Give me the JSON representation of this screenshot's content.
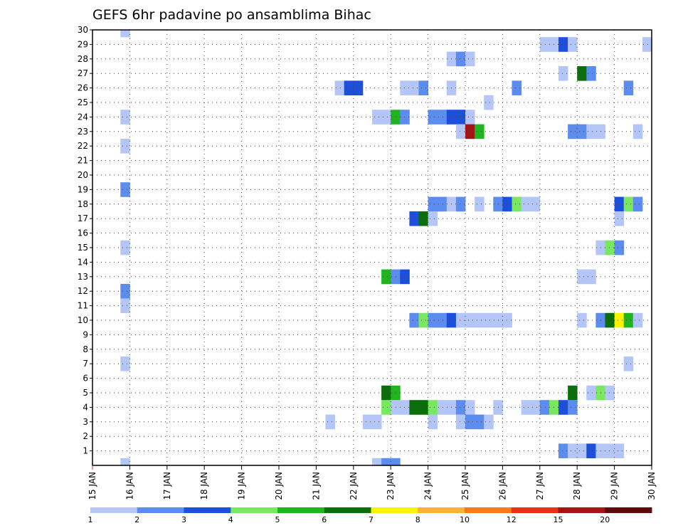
{
  "chart_data": {
    "type": "heatmap",
    "title": "GEFS 6hr padavine po ansamblima Bihac",
    "x_tick_labels": [
      "15 JAN",
      "16 JAN",
      "17 JAN",
      "18 JAN",
      "19 JAN",
      "20 JAN",
      "21 JAN",
      "22 JAN",
      "23 JAN",
      "24 JAN",
      "25 JAN",
      "26 JAN",
      "27 JAN",
      "28 JAN",
      "29 JAN",
      "30 JAN"
    ],
    "y_tick_labels": [
      "1",
      "2",
      "3",
      "4",
      "5",
      "6",
      "7",
      "8",
      "9",
      "10",
      "11",
      "12",
      "13",
      "14",
      "15",
      "16",
      "17",
      "18",
      "19",
      "20",
      "21",
      "22",
      "23",
      "24",
      "25",
      "26",
      "27",
      "28",
      "29",
      "30"
    ],
    "x_range_days": [
      15,
      30
    ],
    "y_range": [
      0,
      30
    ],
    "grid": true,
    "legend": {
      "placement": "bottom",
      "labels": [
        "1",
        "2",
        "3",
        "4",
        "5",
        "6",
        "7",
        "8",
        "10",
        "12",
        "15",
        "20"
      ],
      "colors": [
        "#b3c6f7",
        "#5b8cee",
        "#1c4fdc",
        "#79e860",
        "#1fb51f",
        "#0a6e0a",
        "#fbf300",
        "#f9b23c",
        "#f47a1a",
        "#e63216",
        "#a41414",
        "#5e0a0a"
      ]
    },
    "cells": [
      {
        "member": 30,
        "day": 15.75,
        "level": 1
      },
      {
        "member": 29,
        "day": 27.0,
        "level": 1
      },
      {
        "member": 29,
        "day": 27.25,
        "level": 1
      },
      {
        "member": 29,
        "day": 27.5,
        "level": 3
      },
      {
        "member": 29,
        "day": 27.75,
        "level": 1
      },
      {
        "member": 29,
        "day": 29.75,
        "level": 1
      },
      {
        "member": 28,
        "day": 24.5,
        "level": 1
      },
      {
        "member": 28,
        "day": 24.75,
        "level": 2
      },
      {
        "member": 28,
        "day": 25.0,
        "level": 1
      },
      {
        "member": 27,
        "day": 27.5,
        "level": 1
      },
      {
        "member": 27,
        "day": 28.0,
        "level": 6
      },
      {
        "member": 27,
        "day": 28.25,
        "level": 2
      },
      {
        "member": 26,
        "day": 21.5,
        "level": 1
      },
      {
        "member": 26,
        "day": 21.75,
        "level": 3
      },
      {
        "member": 26,
        "day": 22.0,
        "level": 3
      },
      {
        "member": 26,
        "day": 23.25,
        "level": 1
      },
      {
        "member": 26,
        "day": 23.5,
        "level": 1
      },
      {
        "member": 26,
        "day": 23.75,
        "level": 2
      },
      {
        "member": 26,
        "day": 24.5,
        "level": 1
      },
      {
        "member": 26,
        "day": 26.25,
        "level": 2
      },
      {
        "member": 26,
        "day": 29.25,
        "level": 2
      },
      {
        "member": 25,
        "day": 25.5,
        "level": 1
      },
      {
        "member": 24,
        "day": 15.75,
        "level": 1
      },
      {
        "member": 24,
        "day": 22.5,
        "level": 1
      },
      {
        "member": 24,
        "day": 22.75,
        "level": 1
      },
      {
        "member": 24,
        "day": 23.0,
        "level": 5
      },
      {
        "member": 24,
        "day": 23.25,
        "level": 2
      },
      {
        "member": 24,
        "day": 24.0,
        "level": 2
      },
      {
        "member": 24,
        "day": 24.25,
        "level": 2
      },
      {
        "member": 24,
        "day": 24.5,
        "level": 3
      },
      {
        "member": 24,
        "day": 24.75,
        "level": 3
      },
      {
        "member": 24,
        "day": 25.0,
        "level": 1
      },
      {
        "member": 23,
        "day": 24.75,
        "level": 1
      },
      {
        "member": 23,
        "day": 25.0,
        "level": 11
      },
      {
        "member": 23,
        "day": 25.25,
        "level": 5
      },
      {
        "member": 23,
        "day": 27.75,
        "level": 2
      },
      {
        "member": 23,
        "day": 28.0,
        "level": 2
      },
      {
        "member": 23,
        "day": 28.25,
        "level": 1
      },
      {
        "member": 23,
        "day": 28.5,
        "level": 1
      },
      {
        "member": 23,
        "day": 29.5,
        "level": 1
      },
      {
        "member": 22,
        "day": 15.75,
        "level": 1
      },
      {
        "member": 19,
        "day": 15.75,
        "level": 2
      },
      {
        "member": 18,
        "day": 24.0,
        "level": 2
      },
      {
        "member": 18,
        "day": 24.25,
        "level": 2
      },
      {
        "member": 18,
        "day": 24.5,
        "level": 1
      },
      {
        "member": 18,
        "day": 24.75,
        "level": 2
      },
      {
        "member": 18,
        "day": 25.25,
        "level": 1
      },
      {
        "member": 18,
        "day": 25.75,
        "level": 2
      },
      {
        "member": 18,
        "day": 26.0,
        "level": 3
      },
      {
        "member": 18,
        "day": 26.25,
        "level": 4
      },
      {
        "member": 18,
        "day": 26.5,
        "level": 1
      },
      {
        "member": 18,
        "day": 26.75,
        "level": 1
      },
      {
        "member": 18,
        "day": 29.0,
        "level": 3
      },
      {
        "member": 18,
        "day": 29.25,
        "level": 4
      },
      {
        "member": 18,
        "day": 29.5,
        "level": 2
      },
      {
        "member": 17,
        "day": 23.5,
        "level": 3
      },
      {
        "member": 17,
        "day": 23.75,
        "level": 6
      },
      {
        "member": 17,
        "day": 24.0,
        "level": 1
      },
      {
        "member": 17,
        "day": 29.0,
        "level": 1
      },
      {
        "member": 15,
        "day": 15.75,
        "level": 1
      },
      {
        "member": 15,
        "day": 28.5,
        "level": 1
      },
      {
        "member": 15,
        "day": 28.75,
        "level": 4
      },
      {
        "member": 15,
        "day": 29.0,
        "level": 2
      },
      {
        "member": 13,
        "day": 22.75,
        "level": 5
      },
      {
        "member": 13,
        "day": 23.0,
        "level": 2
      },
      {
        "member": 13,
        "day": 23.25,
        "level": 3
      },
      {
        "member": 13,
        "day": 28.0,
        "level": 1
      },
      {
        "member": 13,
        "day": 28.25,
        "level": 1
      },
      {
        "member": 12,
        "day": 15.75,
        "level": 2
      },
      {
        "member": 11,
        "day": 15.75,
        "level": 1
      },
      {
        "member": 10,
        "day": 23.5,
        "level": 2
      },
      {
        "member": 10,
        "day": 23.75,
        "level": 4
      },
      {
        "member": 10,
        "day": 24.0,
        "level": 2
      },
      {
        "member": 10,
        "day": 24.25,
        "level": 2
      },
      {
        "member": 10,
        "day": 24.5,
        "level": 3
      },
      {
        "member": 10,
        "day": 24.75,
        "level": 1
      },
      {
        "member": 10,
        "day": 25.0,
        "level": 1
      },
      {
        "member": 10,
        "day": 25.25,
        "level": 1
      },
      {
        "member": 10,
        "day": 25.5,
        "level": 1
      },
      {
        "member": 10,
        "day": 25.75,
        "level": 1
      },
      {
        "member": 10,
        "day": 26.0,
        "level": 1
      },
      {
        "member": 10,
        "day": 28.0,
        "level": 1
      },
      {
        "member": 10,
        "day": 28.5,
        "level": 2
      },
      {
        "member": 10,
        "day": 28.75,
        "level": 6
      },
      {
        "member": 10,
        "day": 29.0,
        "level": 7
      },
      {
        "member": 10,
        "day": 29.25,
        "level": 5
      },
      {
        "member": 10,
        "day": 29.5,
        "level": 1
      },
      {
        "member": 7,
        "day": 15.75,
        "level": 1
      },
      {
        "member": 7,
        "day": 29.25,
        "level": 1
      },
      {
        "member": 5,
        "day": 22.75,
        "level": 6
      },
      {
        "member": 5,
        "day": 23.0,
        "level": 5
      },
      {
        "member": 5,
        "day": 27.75,
        "level": 6
      },
      {
        "member": 5,
        "day": 28.25,
        "level": 1
      },
      {
        "member": 5,
        "day": 28.5,
        "level": 4
      },
      {
        "member": 5,
        "day": 28.75,
        "level": 1
      },
      {
        "member": 4,
        "day": 22.75,
        "level": 4
      },
      {
        "member": 4,
        "day": 23.0,
        "level": 1
      },
      {
        "member": 4,
        "day": 23.25,
        "level": 1
      },
      {
        "member": 4,
        "day": 23.5,
        "level": 6
      },
      {
        "member": 4,
        "day": 23.75,
        "level": 6
      },
      {
        "member": 4,
        "day": 24.0,
        "level": 4
      },
      {
        "member": 4,
        "day": 24.25,
        "level": 1
      },
      {
        "member": 4,
        "day": 24.5,
        "level": 1
      },
      {
        "member": 4,
        "day": 24.75,
        "level": 2
      },
      {
        "member": 4,
        "day": 25.0,
        "level": 1
      },
      {
        "member": 4,
        "day": 25.75,
        "level": 1
      },
      {
        "member": 4,
        "day": 26.5,
        "level": 1
      },
      {
        "member": 4,
        "day": 26.75,
        "level": 1
      },
      {
        "member": 4,
        "day": 27.0,
        "level": 2
      },
      {
        "member": 4,
        "day": 27.25,
        "level": 4
      },
      {
        "member": 4,
        "day": 27.5,
        "level": 3
      },
      {
        "member": 4,
        "day": 27.75,
        "level": 2
      },
      {
        "member": 3,
        "day": 21.25,
        "level": 1
      },
      {
        "member": 3,
        "day": 22.25,
        "level": 1
      },
      {
        "member": 3,
        "day": 22.5,
        "level": 1
      },
      {
        "member": 3,
        "day": 24.0,
        "level": 1
      },
      {
        "member": 3,
        "day": 24.75,
        "level": 1
      },
      {
        "member": 3,
        "day": 25.0,
        "level": 2
      },
      {
        "member": 3,
        "day": 25.25,
        "level": 2
      },
      {
        "member": 3,
        "day": 25.5,
        "level": 1
      },
      {
        "member": 1,
        "day": 27.5,
        "level": 2
      },
      {
        "member": 1,
        "day": 27.75,
        "level": 1
      },
      {
        "member": 1,
        "day": 28.0,
        "level": 1
      },
      {
        "member": 1,
        "day": 28.25,
        "level": 3
      },
      {
        "member": 1,
        "day": 28.5,
        "level": 1
      },
      {
        "member": 1,
        "day": 28.75,
        "level": 1
      },
      {
        "member": 1,
        "day": 29.0,
        "level": 1
      },
      {
        "member": 0,
        "day": 15.75,
        "level": 1
      },
      {
        "member": 0,
        "day": 22.5,
        "level": 1
      },
      {
        "member": 0,
        "day": 22.75,
        "level": 2
      },
      {
        "member": 0,
        "day": 23.0,
        "level": 2
      }
    ]
  }
}
